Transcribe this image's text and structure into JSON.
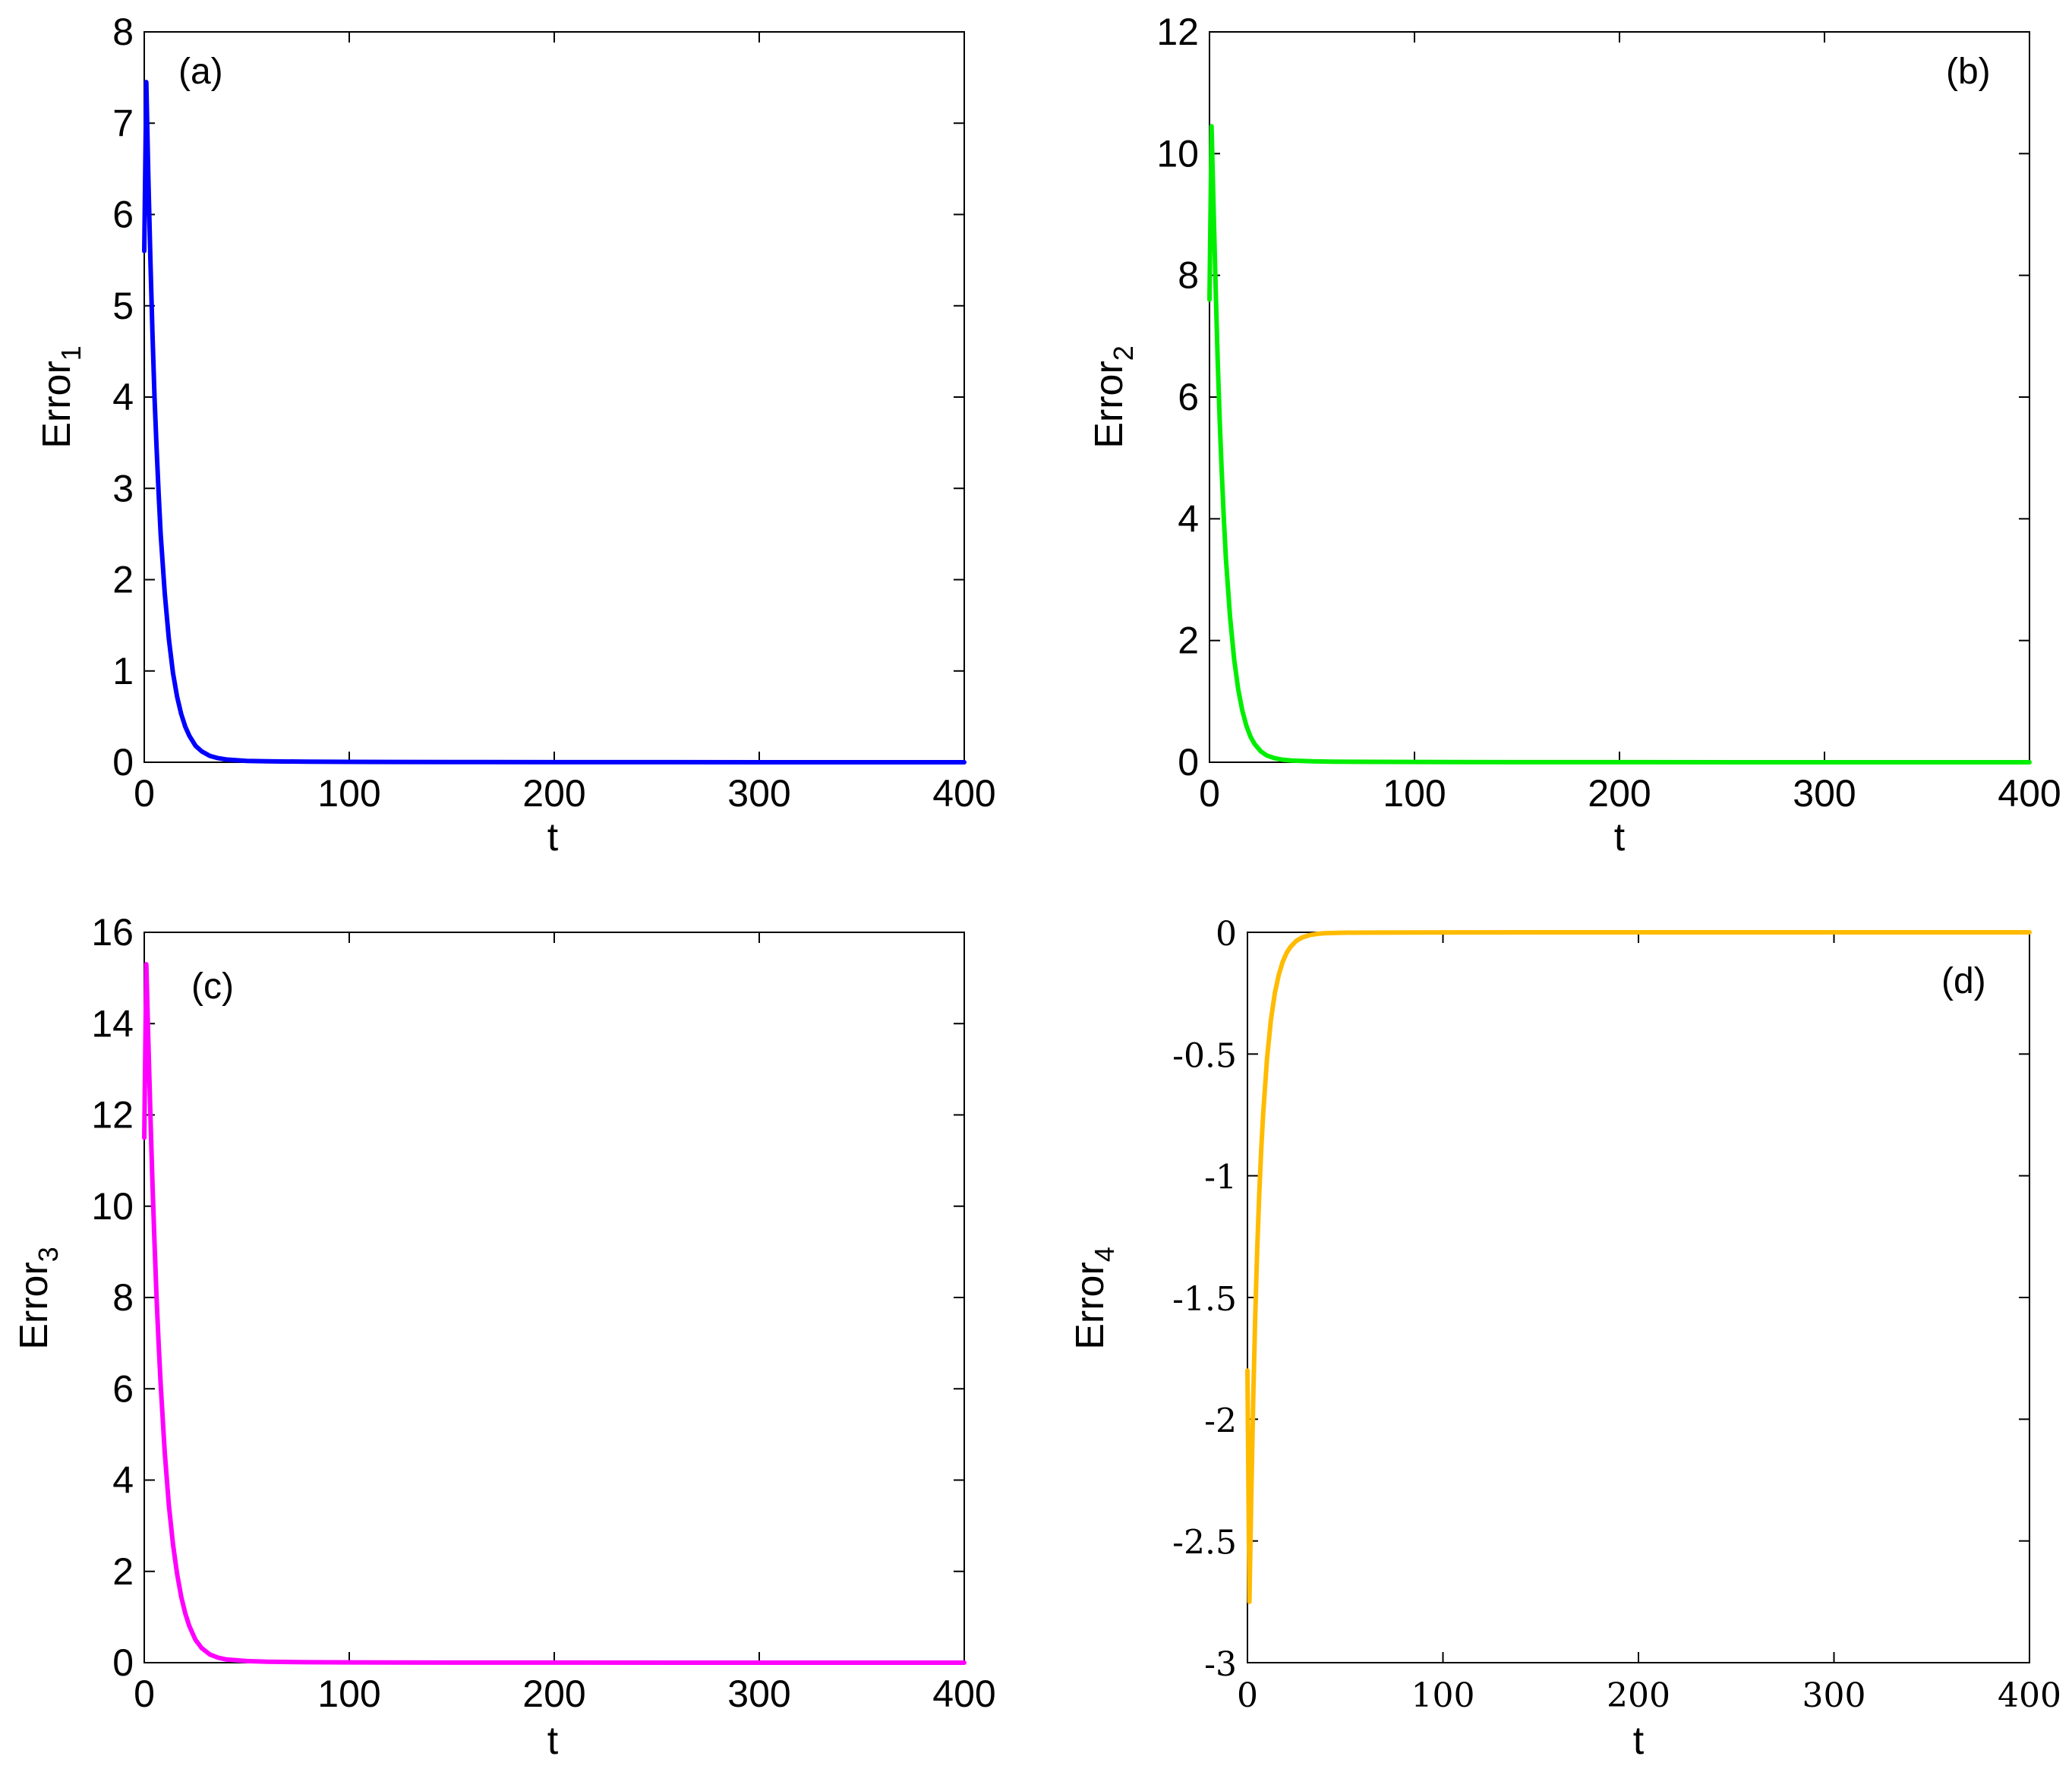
{
  "chart_data": [
    {
      "type": "line",
      "panel_label": "(a)",
      "xlabel": "t",
      "ylabel": "Error",
      "ylabel_sub": "1",
      "xlim": [
        0,
        400
      ],
      "ylim": [
        0,
        8
      ],
      "xticks": [
        "0",
        "100",
        "200",
        "300",
        "400"
      ],
      "yticks": [
        "0",
        "1",
        "2",
        "3",
        "4",
        "5",
        "6",
        "7",
        "8"
      ],
      "color": "#0000ff",
      "series": [
        {
          "x": [
            0,
            1,
            2,
            3,
            4,
            5,
            6,
            7,
            8,
            10,
            12,
            14,
            16,
            18,
            20,
            22,
            25,
            28,
            32,
            36,
            40,
            50,
            60,
            80,
            100,
            150,
            200,
            300,
            400
          ],
          "values": [
            5.6,
            7.45,
            6.4,
            5.5,
            4.7,
            4.0,
            3.45,
            2.95,
            2.5,
            1.85,
            1.35,
            0.98,
            0.72,
            0.53,
            0.39,
            0.29,
            0.18,
            0.12,
            0.07,
            0.045,
            0.03,
            0.015,
            0.01,
            0.006,
            0.004,
            0.002,
            0.001,
            0.0005,
            0.0002
          ]
        }
      ]
    },
    {
      "type": "line",
      "panel_label": "(b)",
      "xlabel": "t",
      "ylabel": "Error",
      "ylabel_sub": "2",
      "xlim": [
        0,
        400
      ],
      "ylim": [
        0,
        12
      ],
      "xticks": [
        "0",
        "100",
        "200",
        "300",
        "400"
      ],
      "yticks": [
        "0",
        "2",
        "4",
        "6",
        "8",
        "10",
        "12"
      ],
      "color": "#00ee00",
      "series": [
        {
          "x": [
            0,
            1,
            2,
            3,
            4,
            5,
            6,
            7,
            8,
            10,
            12,
            14,
            16,
            18,
            20,
            22,
            25,
            28,
            32,
            36,
            40,
            50,
            60,
            80,
            100,
            150,
            200,
            300,
            400
          ],
          "values": [
            7.6,
            10.45,
            9.1,
            7.8,
            6.6,
            5.6,
            4.75,
            4.0,
            3.35,
            2.4,
            1.7,
            1.2,
            0.85,
            0.6,
            0.42,
            0.3,
            0.18,
            0.11,
            0.065,
            0.04,
            0.028,
            0.015,
            0.01,
            0.006,
            0.004,
            0.002,
            0.001,
            0.0005,
            0.0002
          ]
        }
      ]
    },
    {
      "type": "line",
      "panel_label": "(c)",
      "xlabel": "t",
      "ylabel": "Error",
      "ylabel_sub": "3",
      "xlim": [
        0,
        400
      ],
      "ylim": [
        0,
        16
      ],
      "xticks": [
        "0",
        "100",
        "200",
        "300",
        "400"
      ],
      "yticks": [
        "0",
        "2",
        "4",
        "6",
        "8",
        "10",
        "12",
        "14",
        "16"
      ],
      "color": "#ff00ff",
      "series": [
        {
          "x": [
            0,
            1,
            2,
            3,
            4,
            5,
            6,
            7,
            8,
            10,
            12,
            14,
            16,
            18,
            20,
            22,
            25,
            28,
            32,
            36,
            40,
            50,
            60,
            80,
            100,
            150,
            200,
            300,
            400
          ],
          "values": [
            11.5,
            15.3,
            13.6,
            12.0,
            10.5,
            9.2,
            8.0,
            7.0,
            6.1,
            4.6,
            3.45,
            2.6,
            1.95,
            1.45,
            1.08,
            0.8,
            0.5,
            0.32,
            0.18,
            0.11,
            0.07,
            0.035,
            0.02,
            0.01,
            0.006,
            0.003,
            0.0015,
            0.0007,
            0.0003
          ]
        }
      ]
    },
    {
      "type": "line",
      "panel_label": "(d)",
      "xlabel": "t",
      "ylabel": "Error",
      "ylabel_sub": "4",
      "xlim": [
        0,
        400
      ],
      "ylim": [
        -3,
        0
      ],
      "xticks": [
        "0",
        "100",
        "200",
        "300",
        "400"
      ],
      "yticks": [
        "-3",
        "-2.5",
        "-2",
        "-1.5",
        "-1",
        "-0.5",
        "0"
      ],
      "color": "#ffbb00",
      "series": [
        {
          "x": [
            0,
            1,
            2,
            3,
            4,
            5,
            6,
            7,
            8,
            10,
            12,
            14,
            16,
            18,
            20,
            22,
            25,
            28,
            32,
            36,
            40,
            50,
            60,
            80,
            100,
            150,
            200,
            300,
            400
          ],
          "values": [
            -1.8,
            -2.75,
            -2.3,
            -1.9,
            -1.57,
            -1.3,
            -1.08,
            -0.9,
            -0.75,
            -0.52,
            -0.36,
            -0.25,
            -0.175,
            -0.122,
            -0.085,
            -0.06,
            -0.035,
            -0.021,
            -0.011,
            -0.006,
            -0.0035,
            -0.0015,
            -0.001,
            -0.0006,
            -0.0004,
            -0.0002,
            -0.0001,
            -5e-05,
            -2e-05
          ]
        }
      ]
    }
  ]
}
